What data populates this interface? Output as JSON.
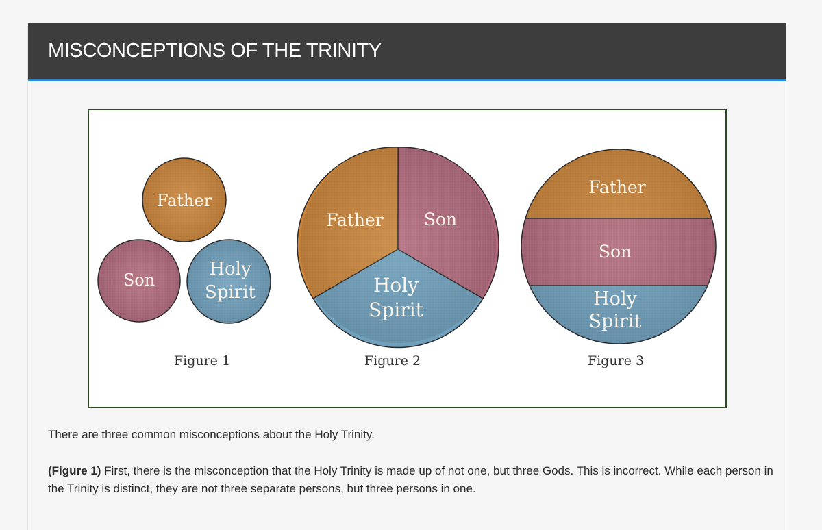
{
  "header": {
    "title": "MISCONCEPTIONS OF THE TRINITY"
  },
  "figures": {
    "figure1": {
      "father": "Father",
      "son": "Son",
      "holy": "Holy",
      "spirit": "Spirit",
      "caption": "Figure 1"
    },
    "figure2": {
      "father": "Father",
      "son": "Son",
      "holy": "Holy",
      "spirit": "Spirit",
      "caption": "Figure 2"
    },
    "figure3": {
      "father": "Father",
      "son": "Son",
      "holy": "Holy",
      "spirit": "Spirit",
      "caption": "Figure 3"
    }
  },
  "colors": {
    "father": "#c9843a",
    "son": "#b06a7c",
    "spirit": "#6f9fbb",
    "header_bg": "#3d3d3d",
    "accent": "#2a8bd0",
    "frame": "#2b4d1f"
  },
  "content": {
    "intro": "There are three common misconceptions about the Holy Trinity.",
    "p1_label": "(Figure 1)",
    "p1_text": " First, there is the misconception that the Holy Trinity is made up of not one, but three Gods. This is incorrect. While each person in the Trinity is distinct, they are not three separate persons, but three persons in one."
  }
}
